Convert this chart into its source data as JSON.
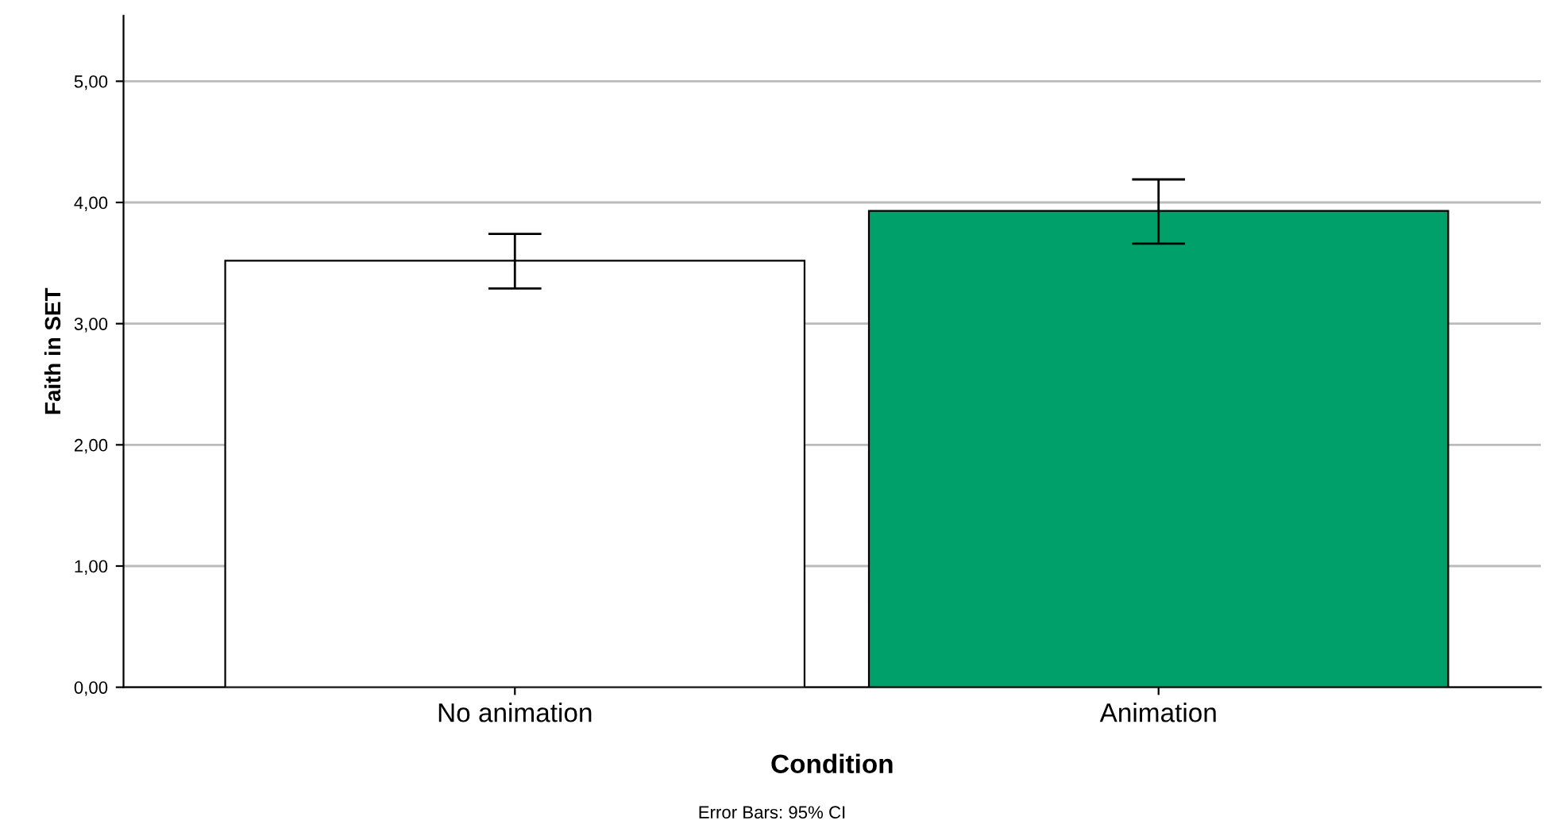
{
  "chart_data": {
    "type": "bar",
    "xlabel": "Condition",
    "ylabel": "Faith in SET",
    "categories": [
      "No animation",
      "Animation"
    ],
    "values": [
      3.52,
      3.93
    ],
    "colors": [
      "#ffffff",
      "#00a06a"
    ],
    "errors": [
      [
        3.29,
        3.74
      ],
      [
        3.66,
        4.19
      ]
    ],
    "ylim": [
      0,
      5.54
    ],
    "yticks": [
      {
        "value": 0,
        "label": "0,00"
      },
      {
        "value": 1,
        "label": "1,00"
      },
      {
        "value": 2,
        "label": "2,00"
      },
      {
        "value": 3,
        "label": "3,00"
      },
      {
        "value": 4,
        "label": "4,00"
      },
      {
        "value": 5,
        "label": "5,00"
      }
    ],
    "grid": "y",
    "annotations": [
      "Error Bars: 95% CI"
    ]
  }
}
